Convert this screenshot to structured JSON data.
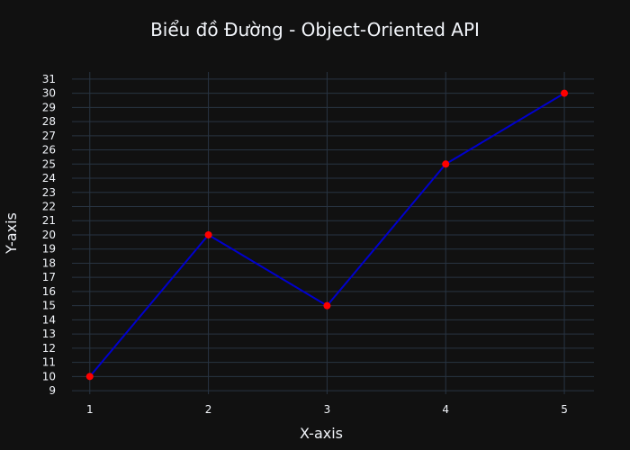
{
  "colors": {
    "background": "#111111",
    "grid": "#283442",
    "text": "#f2f5fa",
    "line": "#0000cd",
    "marker": "#ff0000"
  },
  "chart_data": {
    "type": "line",
    "title": "Biểu đồ Đường - Object-Oriented API",
    "xlabel": "X-axis",
    "ylabel": "Y-axis",
    "x": [
      1,
      2,
      3,
      4,
      5
    ],
    "series": [
      {
        "values": [
          10,
          20,
          15,
          25,
          30
        ]
      }
    ],
    "xticks": [
      1,
      2,
      3,
      4,
      5
    ],
    "yticks": [
      9,
      10,
      11,
      12,
      13,
      14,
      15,
      16,
      17,
      18,
      19,
      20,
      21,
      22,
      23,
      24,
      25,
      26,
      27,
      28,
      29,
      30,
      31
    ],
    "xlim": [
      0.85,
      5.25
    ],
    "ylim": [
      8.75,
      31.5
    ],
    "grid": true,
    "markers": true
  }
}
